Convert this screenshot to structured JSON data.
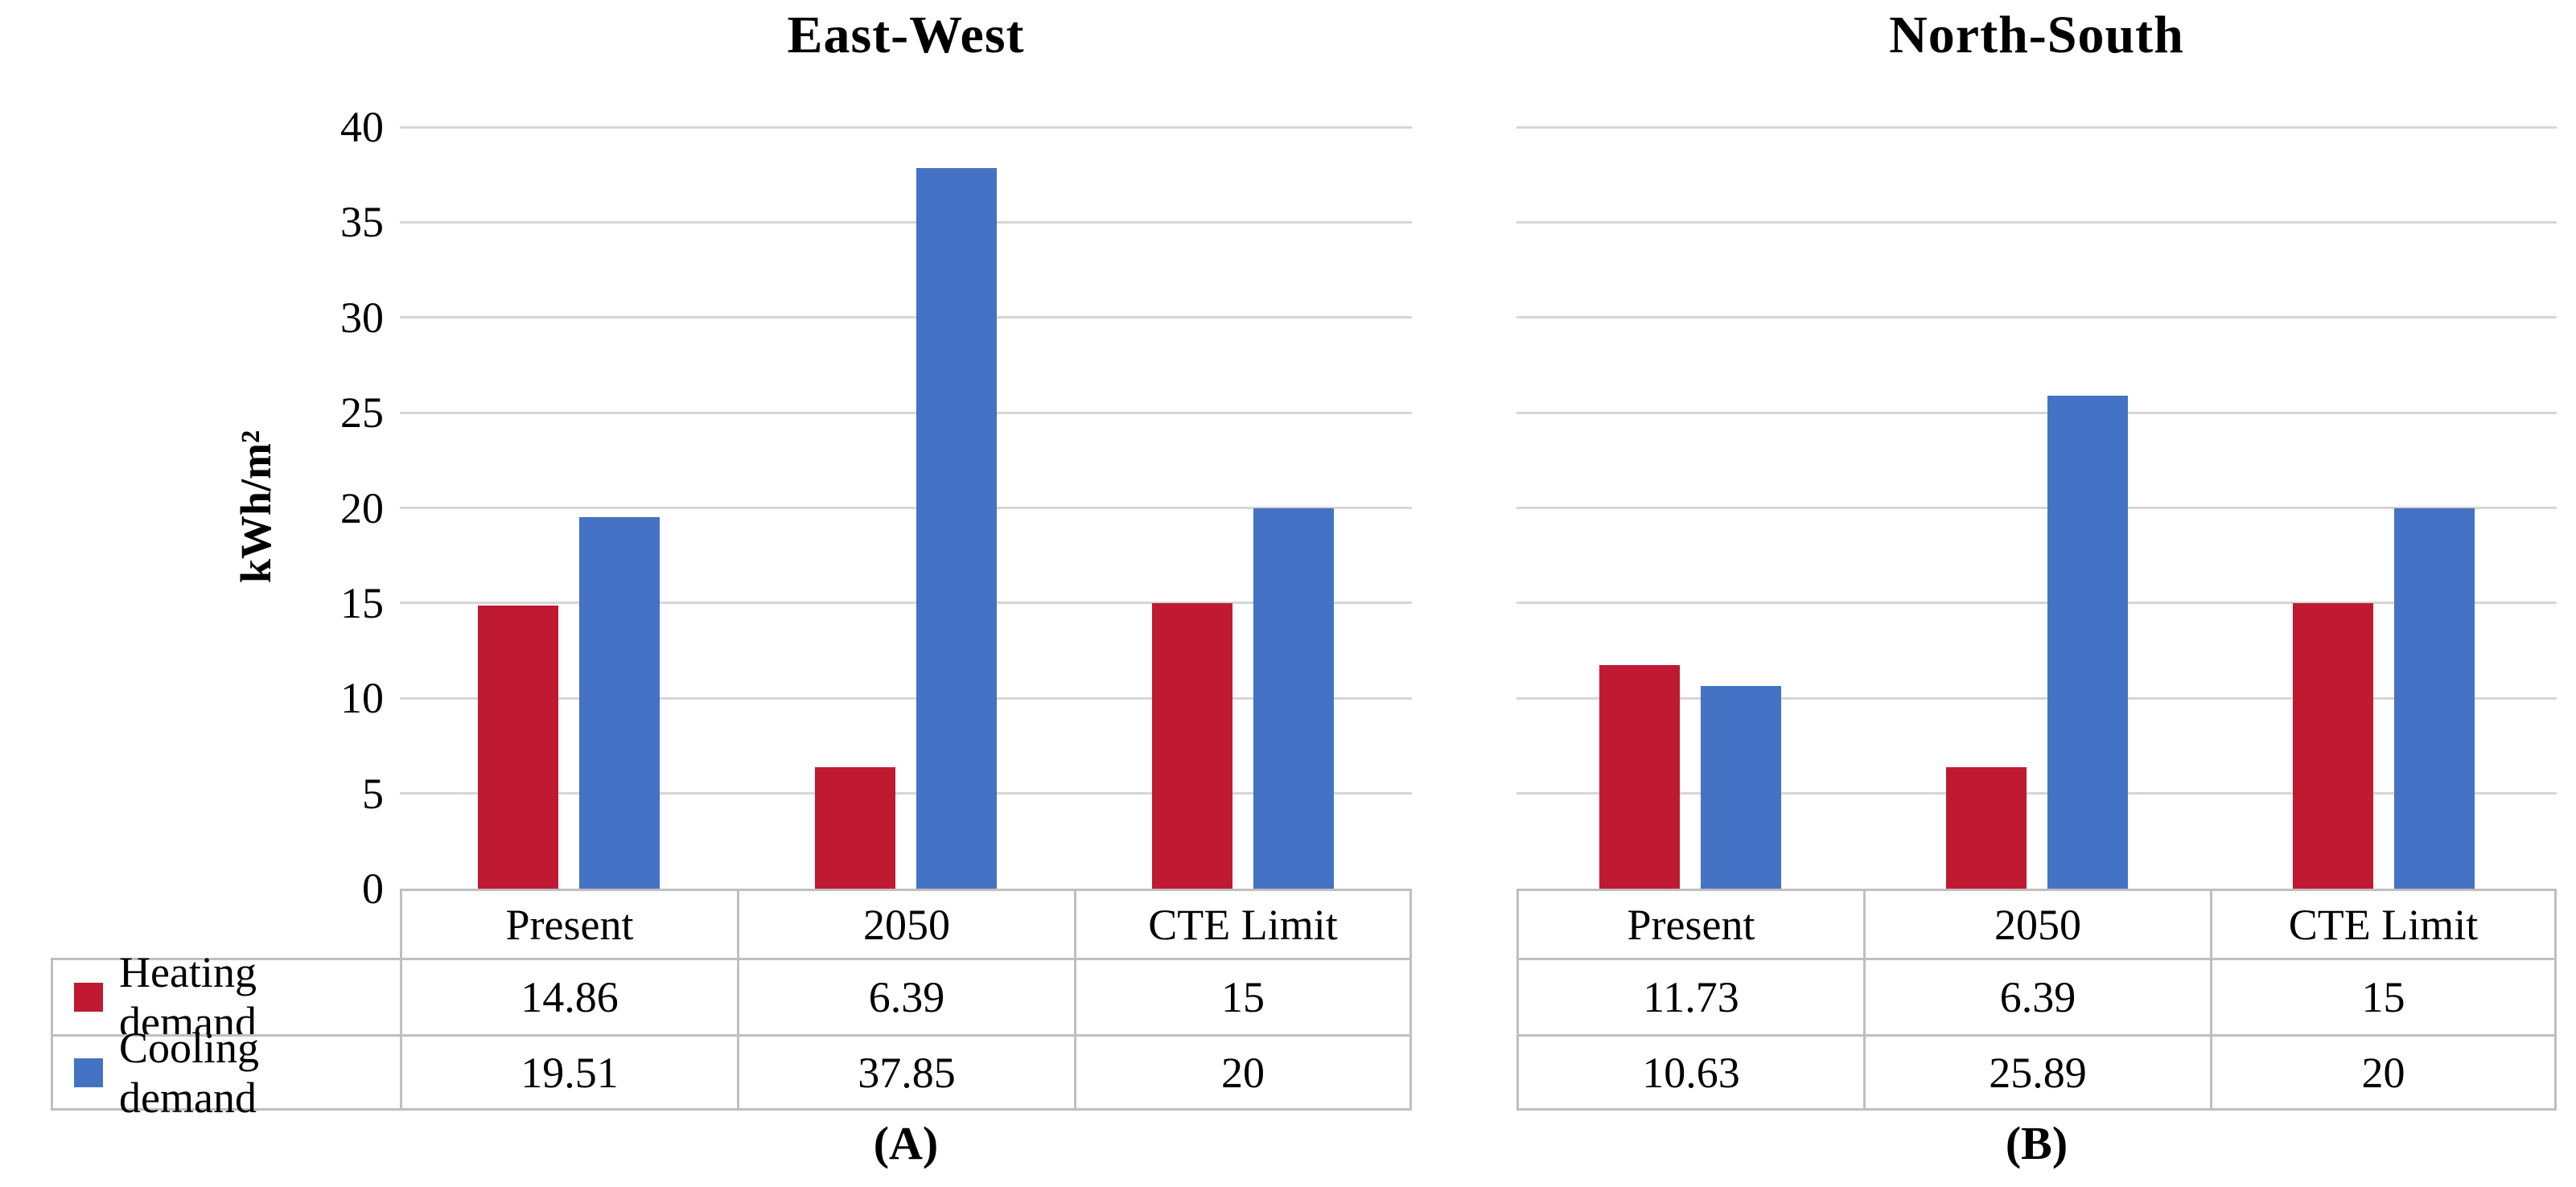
{
  "colors": {
    "heating": "#C01A33",
    "cooling": "#4472C4",
    "gridline": "#D6D6D6",
    "table_border": "#BFBFBF",
    "text": "#000000",
    "background": "#FFFFFF"
  },
  "chart_data": [
    {
      "id": "east-west",
      "type": "bar",
      "title": "East-West",
      "caption": "(A)",
      "y_axis_title": "kWh/m²",
      "show_y_axis": true,
      "categories": [
        "Present",
        "2050",
        "CTE Limit"
      ],
      "series": [
        {
          "name": "Heating demand",
          "color": "#C01A33",
          "values": [
            14.86,
            6.39,
            15
          ]
        },
        {
          "name": "Cooling demand",
          "color": "#4472C4",
          "values": [
            19.51,
            37.85,
            20
          ]
        }
      ],
      "ylim": [
        0,
        40
      ],
      "ytick_step": 5,
      "yticks": [
        0,
        5,
        10,
        15,
        20,
        25,
        30,
        35,
        40
      ],
      "grid": true,
      "legend_position": "table-left"
    },
    {
      "id": "north-south",
      "type": "bar",
      "title": "North-South",
      "caption": "(B)",
      "show_y_axis": false,
      "categories": [
        "Present",
        "2050",
        "CTE Limit"
      ],
      "series": [
        {
          "name": "Heating demand",
          "color": "#C01A33",
          "values": [
            11.73,
            6.39,
            15
          ]
        },
        {
          "name": "Cooling demand",
          "color": "#4472C4",
          "values": [
            10.63,
            25.89,
            20
          ]
        }
      ],
      "ylim": [
        0,
        40
      ],
      "ytick_step": 5,
      "yticks": [
        0,
        5,
        10,
        15,
        20,
        25,
        30,
        35,
        40
      ],
      "grid": true,
      "legend_position": "none"
    }
  ]
}
